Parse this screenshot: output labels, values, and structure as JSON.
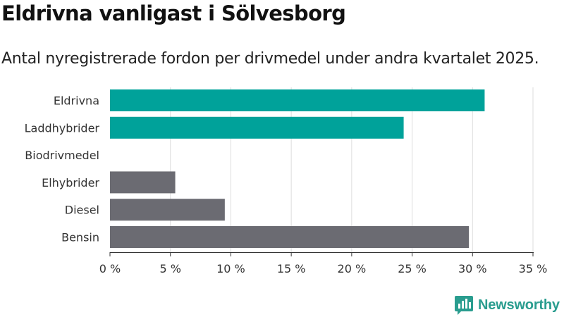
{
  "title": "Eldrivna vanligast i Sölvesborg",
  "subtitle": "Antal nyregistrerade fordon per drivmedel under andra kvartalet 2025.",
  "brand": {
    "name": "Newsworthy",
    "icon": "newsworthy-logo-icon",
    "color": "#2a9d8f"
  },
  "colors": {
    "highlight": "#00a29a",
    "other": "#6b6b72",
    "grid": "#dddddd",
    "axis": "#333333"
  },
  "chart_data": {
    "type": "bar",
    "orientation": "horizontal",
    "categories": [
      "Eldrivna",
      "Laddhybrider",
      "Biodrivmedel",
      "Elhybrider",
      "Diesel",
      "Bensin"
    ],
    "values": [
      31.0,
      24.3,
      0,
      5.4,
      9.5,
      29.7
    ],
    "bar_colors": [
      "#00a29a",
      "#00a29a",
      "#00a29a",
      "#6b6b72",
      "#6b6b72",
      "#6b6b72"
    ],
    "xlim": [
      0,
      35
    ],
    "xticks": [
      0,
      5,
      10,
      15,
      20,
      25,
      30,
      35
    ],
    "xtick_labels": [
      "0 %",
      "5 %",
      "10 %",
      "15 %",
      "20 %",
      "25 %",
      "30 %",
      "35 %"
    ],
    "grid": true,
    "xlabel": "",
    "ylabel": ""
  }
}
